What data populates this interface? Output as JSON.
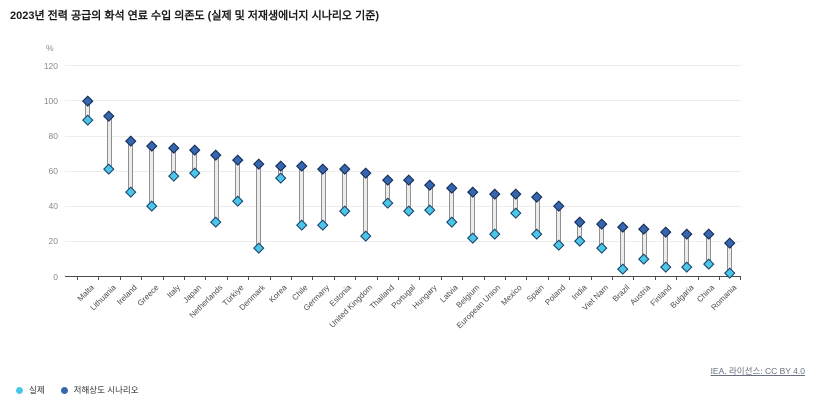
{
  "title": "2023년 전력 공급의 화석 연료 수입 의존도 (실제 및 저재생에너지 시나리오 기준)",
  "y_axis": {
    "unit": "%",
    "ticks": [
      0,
      20,
      40,
      60,
      80,
      100,
      120
    ]
  },
  "chart_data": {
    "type": "scatter",
    "subtype": "dumbbell-range",
    "title": "2023년 전력 공급의 화석 연료 수입 의존도 (실제 및 저재생에너지 시나리오 기준)",
    "ylabel": "%",
    "ylim": [
      0,
      120
    ],
    "grid": true,
    "legend_position": "bottom-left",
    "categories": [
      "Malta",
      "Lithuania",
      "Ireland",
      "Greece",
      "Italy",
      "Japan",
      "Netherlands",
      "Türkiye",
      "Denmark",
      "Korea",
      "Chile",
      "Germany",
      "Estonia",
      "United Kingdom",
      "Thailand",
      "Portugal",
      "Hungary",
      "Latvia",
      "Belgium",
      "European Union",
      "Mexico",
      "Spain",
      "Poland",
      "India",
      "Viet Nam",
      "Brazil",
      "Austria",
      "Finland",
      "Bulgaria",
      "China",
      "Romania"
    ],
    "series": [
      {
        "name": "실제",
        "marker": "diamond",
        "color": "#4BC6E8",
        "values": [
          89,
          61,
          48,
          40,
          57,
          59,
          31,
          43,
          16,
          56,
          29,
          29,
          37,
          23,
          42,
          37,
          38,
          31,
          22,
          24,
          36,
          24,
          18,
          20,
          16,
          4,
          10,
          5,
          5,
          7,
          2
        ]
      },
      {
        "name": "저해상도 시나리오",
        "marker": "diamond",
        "color": "#3566AF",
        "values": [
          100,
          91,
          77,
          74,
          73,
          72,
          69,
          66,
          64,
          63,
          63,
          61,
          61,
          59,
          55,
          55,
          52,
          50,
          48,
          47,
          47,
          45,
          40,
          31,
          30,
          28,
          27,
          25,
          24,
          24,
          19
        ]
      }
    ]
  },
  "legend": {
    "items": [
      {
        "label": "실제",
        "color": "#4BC6E8"
      },
      {
        "label": "저해상도 시나리오",
        "color": "#3566AF"
      }
    ]
  },
  "footer": {
    "link_text": "IEA. 라이선스: CC BY 4.0"
  }
}
